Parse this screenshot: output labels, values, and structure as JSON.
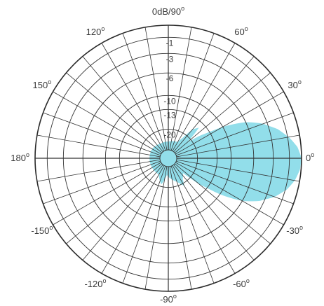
{
  "chart_data": {
    "type": "polar",
    "title": "",
    "angle_unit": "degrees",
    "angle_labels": [
      {
        "text": "0dB/90",
        "angle": 90
      },
      {
        "text": "60",
        "angle": 60
      },
      {
        "text": "30",
        "angle": 30
      },
      {
        "text": "0",
        "angle": 0
      },
      {
        "text": "-30",
        "angle": -30
      },
      {
        "text": "-60",
        "angle": -60
      },
      {
        "text": "-90",
        "angle": -90
      },
      {
        "text": "-120",
        "angle": -120
      },
      {
        "text": "-150",
        "angle": -150
      },
      {
        "text": "180",
        "angle": 180
      },
      {
        "text": "150",
        "angle": 150
      },
      {
        "text": "120",
        "angle": 120
      }
    ],
    "degree_symbol": "o",
    "radial_unit": "dB",
    "radial_range": [
      -30,
      0
    ],
    "radial_ticks": [
      {
        "label": "-1",
        "value": -1
      },
      {
        "label": "-3",
        "value": -3
      },
      {
        "label": "-6",
        "value": -6
      },
      {
        "label": "-10",
        "value": -10
      },
      {
        "label": "-13",
        "value": -13
      },
      {
        "label": "-20",
        "value": -20
      }
    ],
    "rings_db": [
      -1,
      -3,
      -6,
      -10,
      -13,
      -20
    ],
    "spoke_step_deg": 10,
    "grid": true,
    "series": [
      {
        "fill": "#7fd8e6",
        "points": [
          {
            "angle": 0,
            "db": 0
          },
          {
            "angle": 5,
            "db": -0.3
          },
          {
            "angle": 10,
            "db": -0.9
          },
          {
            "angle": 15,
            "db": -2
          },
          {
            "angle": 20,
            "db": -3.6
          },
          {
            "angle": 25,
            "db": -6
          },
          {
            "angle": 30,
            "db": -10
          },
          {
            "angle": 35,
            "db": -16
          },
          {
            "angle": 40,
            "db": -22
          },
          {
            "angle": 45,
            "db": -15
          },
          {
            "angle": 50,
            "db": -17
          },
          {
            "angle": 55,
            "db": -22
          },
          {
            "angle": 60,
            "db": -25
          },
          {
            "angle": 90,
            "db": -26
          },
          {
            "angle": 120,
            "db": -26
          },
          {
            "angle": 150,
            "db": -25
          },
          {
            "angle": 180,
            "db": -25
          },
          {
            "angle": 210,
            "db": -25
          },
          {
            "angle": 240,
            "db": -25
          },
          {
            "angle": 255,
            "db": -21
          },
          {
            "angle": 265,
            "db": -26
          },
          {
            "angle": 290,
            "db": -22
          },
          {
            "angle": 300,
            "db": -19
          },
          {
            "angle": 305,
            "db": -22
          },
          {
            "angle": 315,
            "db": -24
          },
          {
            "angle": 320,
            "db": -16
          },
          {
            "angle": 325,
            "db": -10
          },
          {
            "angle": 330,
            "db": -6
          },
          {
            "angle": 335,
            "db": -3.6
          },
          {
            "angle": 340,
            "db": -2
          },
          {
            "angle": 345,
            "db": -0.9
          },
          {
            "angle": 350,
            "db": -0.4
          },
          {
            "angle": 355,
            "db": -0.1
          }
        ]
      }
    ]
  }
}
